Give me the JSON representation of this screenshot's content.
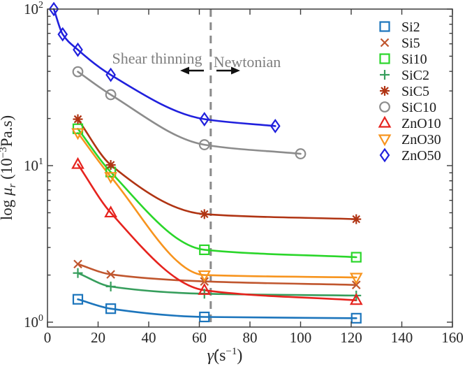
{
  "figure": {
    "background": "#ffffff",
    "box_color": "#3c3c3c",
    "text_color": "#262626",
    "annotation_color": "#7e7e7e",
    "divider_color": "#8a8a8a",
    "arrow_color": "#111111"
  },
  "chart_data": {
    "type": "line",
    "title": "",
    "xlabel": "γ̇(s⁻¹)",
    "ylabel": "log μr (10⁻³Pa.s)",
    "xlabel_parts": {
      "gamma": "γ̇",
      "open": "(s",
      "exp": "−1",
      "close": ")"
    },
    "ylabel_parts": {
      "prefix": "log ",
      "mu": "μ",
      "sub": "r",
      "open": " (10",
      "exp": "−3",
      "close": "Pa.s)"
    },
    "xlim": [
      0,
      160
    ],
    "ylim": [
      0.93,
      102
    ],
    "y_scale": "log",
    "grid": false,
    "legend_position": "top-right-inside",
    "x_ticks": [
      {
        "v": 0,
        "label": "0"
      },
      {
        "v": 20,
        "label": "20"
      },
      {
        "v": 40,
        "label": "40"
      },
      {
        "v": 60,
        "label": "60"
      },
      {
        "v": 80,
        "label": "80"
      },
      {
        "v": 100,
        "label": "100"
      },
      {
        "v": 120,
        "label": "120"
      },
      {
        "v": 140,
        "label": "140"
      },
      {
        "v": 160,
        "label": "160"
      }
    ],
    "y_ticks": [
      {
        "v": 1,
        "base": "10",
        "exp": "0"
      },
      {
        "v": 10,
        "base": "10",
        "exp": "1"
      },
      {
        "v": 100,
        "base": "10",
        "exp": "2"
      }
    ],
    "series": [
      {
        "name": "Si2",
        "color": "#1c75bc",
        "marker": "square",
        "points": [
          [
            12,
            1.4
          ],
          [
            25,
            1.22
          ],
          [
            62,
            1.08
          ],
          [
            122,
            1.06
          ]
        ]
      },
      {
        "name": "Si5",
        "color": "#c0562e",
        "marker": "x",
        "points": [
          [
            12,
            2.35
          ],
          [
            25,
            2.02
          ],
          [
            62,
            1.82
          ],
          [
            122,
            1.73
          ]
        ]
      },
      {
        "name": "Si10",
        "color": "#2ad62a",
        "marker": "square",
        "points": [
          [
            12,
            17.2
          ],
          [
            25,
            9.1
          ],
          [
            62,
            2.9
          ],
          [
            122,
            2.6
          ]
        ]
      },
      {
        "name": "SiC2",
        "color": "#369e5c",
        "marker": "plus",
        "points": [
          [
            12,
            2.06
          ],
          [
            25,
            1.69
          ],
          [
            62,
            1.52
          ],
          [
            122,
            1.48
          ]
        ]
      },
      {
        "name": "SiC5",
        "color": "#b03413",
        "marker": "asterisk",
        "points": [
          [
            12,
            19.8
          ],
          [
            25,
            10.1
          ],
          [
            62,
            4.9
          ],
          [
            122,
            4.55
          ]
        ]
      },
      {
        "name": "SiC10",
        "color": "#8c8c8c",
        "marker": "circle",
        "points": [
          [
            12,
            39.8
          ],
          [
            25,
            28.4
          ],
          [
            62,
            13.6
          ],
          [
            100,
            11.9
          ]
        ]
      },
      {
        "name": "ZnO10",
        "color": "#e6231e",
        "marker": "triangle-up",
        "points": [
          [
            12,
            10.2
          ],
          [
            25,
            5.0
          ],
          [
            62,
            1.6
          ],
          [
            122,
            1.38
          ]
        ]
      },
      {
        "name": "ZnO30",
        "color": "#f7941e",
        "marker": "triangle-down",
        "points": [
          [
            12,
            16.2
          ],
          [
            25,
            8.5
          ],
          [
            62,
            2.0
          ],
          [
            122,
            1.93
          ]
        ]
      },
      {
        "name": "ZnO50",
        "color": "#2020dd",
        "marker": "diamond",
        "points": [
          [
            2.5,
            100
          ],
          [
            6,
            69
          ],
          [
            12,
            55
          ],
          [
            25,
            38
          ],
          [
            62,
            19.8
          ],
          [
            90,
            17.9
          ]
        ]
      }
    ],
    "annotations": {
      "shear_thinning_label": "Shear thinning",
      "newtonian_label": "Newtonian",
      "divider_x": 64.5,
      "left_arrow": "←",
      "right_arrow": "→"
    },
    "legend": [
      "Si2",
      "Si5",
      "Si10",
      "SiC2",
      "SiC5",
      "SiC10",
      "ZnO10",
      "ZnO30",
      "ZnO50"
    ]
  }
}
